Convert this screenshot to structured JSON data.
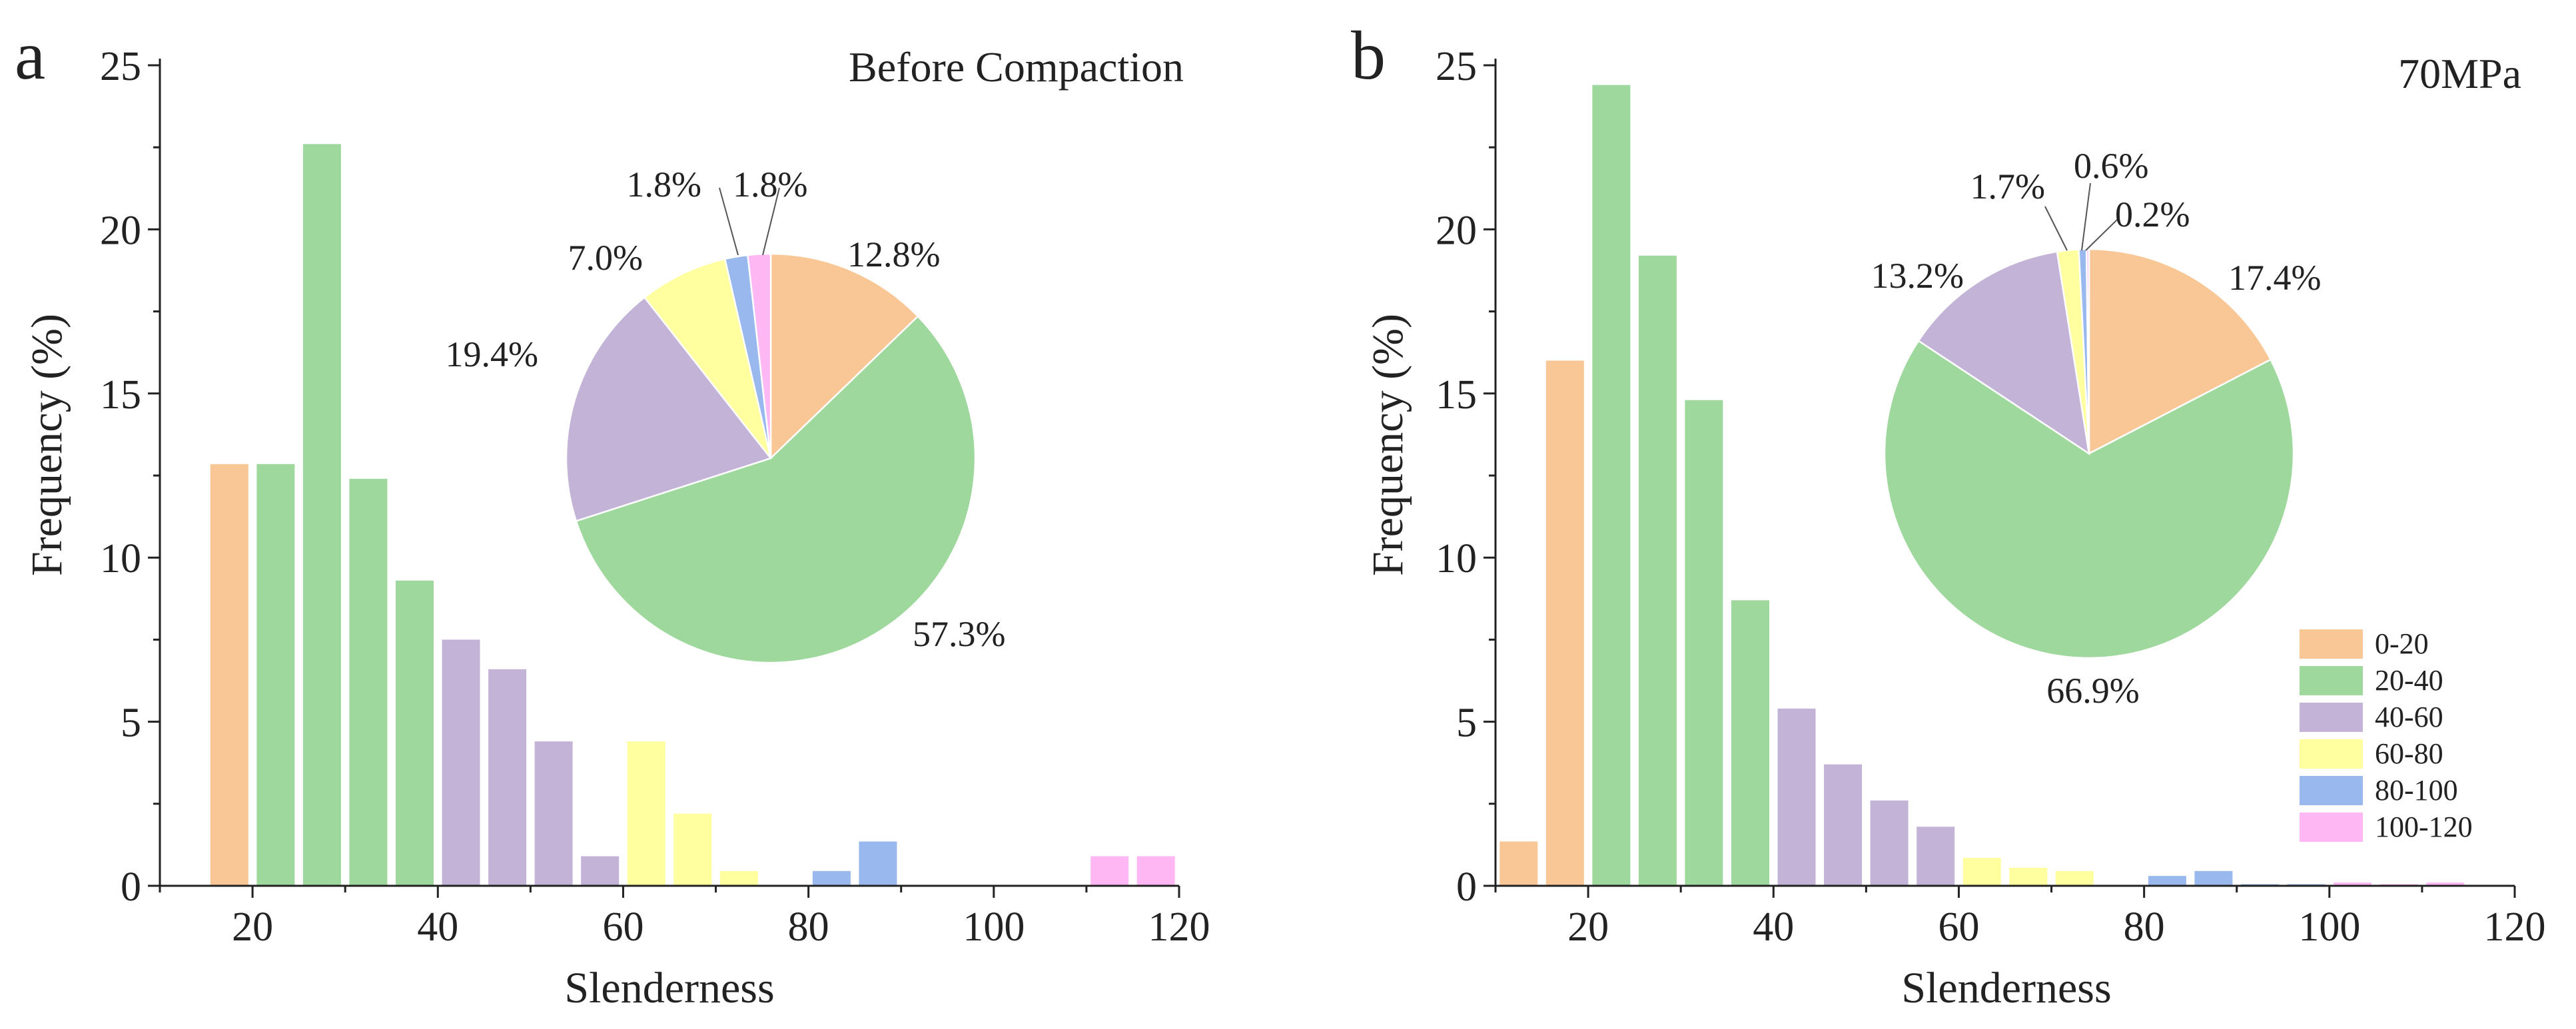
{
  "colors": {
    "0-20": "#F9C795",
    "20-40": "#9ED89D",
    "40-60": "#C2B3D7",
    "60-80": "#FFFF9F",
    "80-100": "#99B8EE",
    "100-120": "#FFB8F4",
    "axis": "#222222"
  },
  "legend": {
    "entries": [
      "0-20",
      "20-40",
      "40-60",
      "60-80",
      "80-100",
      "100-120"
    ],
    "placement": "right of panel b"
  },
  "chart_data": [
    {
      "type": "bar",
      "panel_label": "a",
      "title": "Before Compaction",
      "xlabel": "Slenderness",
      "ylabel": "Frequency (%)",
      "xlim": [
        10,
        120
      ],
      "ylim": [
        0,
        25
      ],
      "xticks": [
        "20",
        "40",
        "60",
        "80",
        "100",
        "120"
      ],
      "yticks": [
        "0",
        "5",
        "10",
        "15",
        "20",
        "25"
      ],
      "bin_width": 5,
      "bars": [
        {
          "x": 17.5,
          "value": 12.85,
          "group": "0-20"
        },
        {
          "x": 22.5,
          "value": 12.85,
          "group": "20-40"
        },
        {
          "x": 27.5,
          "value": 22.6,
          "group": "20-40"
        },
        {
          "x": 32.5,
          "value": 12.4,
          "group": "20-40"
        },
        {
          "x": 37.5,
          "value": 9.3,
          "group": "20-40"
        },
        {
          "x": 42.5,
          "value": 7.5,
          "group": "40-60"
        },
        {
          "x": 47.5,
          "value": 6.6,
          "group": "40-60"
        },
        {
          "x": 52.5,
          "value": 4.4,
          "group": "40-60"
        },
        {
          "x": 57.5,
          "value": 0.9,
          "group": "40-60"
        },
        {
          "x": 62.5,
          "value": 4.4,
          "group": "60-80"
        },
        {
          "x": 67.5,
          "value": 2.2,
          "group": "60-80"
        },
        {
          "x": 72.5,
          "value": 0.45,
          "group": "60-80"
        },
        {
          "x": 82.5,
          "value": 0.45,
          "group": "80-100"
        },
        {
          "x": 87.5,
          "value": 1.35,
          "group": "80-100"
        },
        {
          "x": 112.5,
          "value": 0.9,
          "group": "100-120"
        },
        {
          "x": 117.5,
          "value": 0.9,
          "group": "100-120"
        }
      ],
      "pie": {
        "slices": [
          {
            "group": "0-20",
            "value": 12.8,
            "label": "12.8%"
          },
          {
            "group": "20-40",
            "value": 57.3,
            "label": "57.3%"
          },
          {
            "group": "40-60",
            "value": 19.4,
            "label": "19.4%"
          },
          {
            "group": "60-80",
            "value": 7.0,
            "label": "7.0%"
          },
          {
            "group": "80-100",
            "value": 1.8,
            "label": "1.8%"
          },
          {
            "group": "100-120",
            "value": 1.8,
            "label": "1.8%"
          }
        ]
      }
    },
    {
      "type": "bar",
      "panel_label": "b",
      "title": "70MPa",
      "xlabel": "Slenderness",
      "ylabel": "Frequency (%)",
      "xlim": [
        10,
        120
      ],
      "ylim": [
        0,
        25
      ],
      "xticks": [
        "20",
        "40",
        "60",
        "80",
        "100",
        "120"
      ],
      "yticks": [
        "0",
        "5",
        "10",
        "15",
        "20",
        "25"
      ],
      "bin_width": 5,
      "bars": [
        {
          "x": 12.5,
          "value": 1.35,
          "group": "0-20"
        },
        {
          "x": 17.5,
          "value": 16.0,
          "group": "0-20"
        },
        {
          "x": 22.5,
          "value": 24.4,
          "group": "20-40"
        },
        {
          "x": 27.5,
          "value": 19.2,
          "group": "20-40"
        },
        {
          "x": 32.5,
          "value": 14.8,
          "group": "20-40"
        },
        {
          "x": 37.5,
          "value": 8.7,
          "group": "20-40"
        },
        {
          "x": 42.5,
          "value": 5.4,
          "group": "40-60"
        },
        {
          "x": 47.5,
          "value": 3.7,
          "group": "40-60"
        },
        {
          "x": 52.5,
          "value": 2.6,
          "group": "40-60"
        },
        {
          "x": 57.5,
          "value": 1.8,
          "group": "40-60"
        },
        {
          "x": 62.5,
          "value": 0.85,
          "group": "60-80"
        },
        {
          "x": 67.5,
          "value": 0.55,
          "group": "60-80"
        },
        {
          "x": 72.5,
          "value": 0.45,
          "group": "60-80"
        },
        {
          "x": 82.5,
          "value": 0.3,
          "group": "80-100"
        },
        {
          "x": 87.5,
          "value": 0.45,
          "group": "80-100"
        },
        {
          "x": 92.5,
          "value": 0.05,
          "group": "80-100"
        },
        {
          "x": 97.5,
          "value": 0.05,
          "group": "80-100"
        },
        {
          "x": 102.5,
          "value": 0.1,
          "group": "100-120"
        },
        {
          "x": 107.5,
          "value": 0.05,
          "group": "100-120"
        },
        {
          "x": 112.5,
          "value": 0.1,
          "group": "100-120"
        }
      ],
      "pie": {
        "slices": [
          {
            "group": "0-20",
            "value": 17.4,
            "label": "17.4%"
          },
          {
            "group": "20-40",
            "value": 66.9,
            "label": "66.9%"
          },
          {
            "group": "40-60",
            "value": 13.2,
            "label": "13.2%"
          },
          {
            "group": "60-80",
            "value": 1.7,
            "label": "1.7%"
          },
          {
            "group": "80-100",
            "value": 0.6,
            "label": "0.6%"
          },
          {
            "group": "100-120",
            "value": 0.2,
            "label": "0.2%"
          }
        ]
      }
    }
  ]
}
